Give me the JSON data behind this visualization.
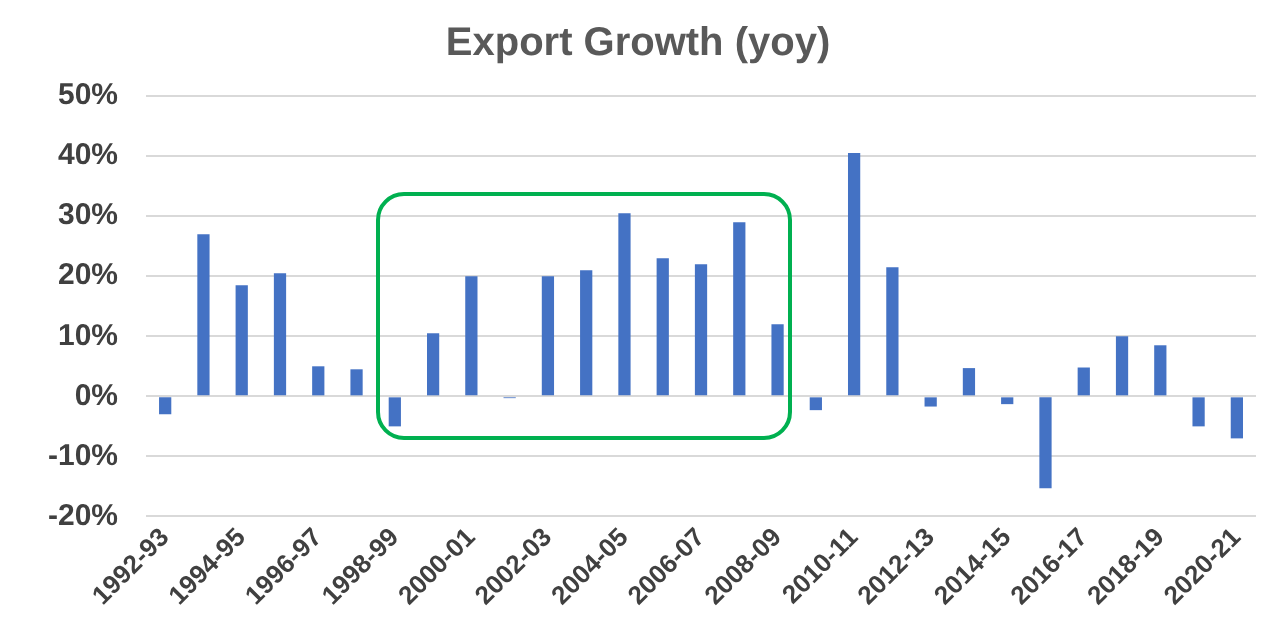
{
  "chart_data": {
    "type": "bar",
    "title": "Export Growth (yoy)",
    "categories": [
      "1992-93",
      null,
      "1994-95",
      null,
      "1996-97",
      null,
      "1998-99",
      null,
      "2000-01",
      null,
      "2002-03",
      null,
      "2004-05",
      null,
      "2006-07",
      null,
      "2008-09",
      null,
      "2010-11",
      null,
      "2012-13",
      null,
      "2014-15",
      null,
      "2016-17",
      null,
      "2018-19",
      null,
      "2020-21"
    ],
    "values": [
      -3,
      27,
      18.5,
      20.5,
      5,
      4.5,
      -5,
      10.5,
      20,
      -0.3,
      20,
      21,
      30.5,
      23,
      22,
      29,
      12,
      -2.3,
      40.5,
      21.5,
      -1.7,
      4.7,
      -1.3,
      -15.3,
      4.8,
      10,
      8.5,
      -5,
      -7
    ],
    "color": "#4472c4",
    "ylim": [
      -20,
      50
    ],
    "yticks": [
      {
        "value": -20,
        "label": "-20%"
      },
      {
        "value": -10,
        "label": "-10%"
      },
      {
        "value": 0,
        "label": "0%"
      },
      {
        "value": 10,
        "label": "10%"
      },
      {
        "value": 20,
        "label": "20%"
      },
      {
        "value": 30,
        "label": "30%"
      },
      {
        "value": 40,
        "label": "40%"
      },
      {
        "value": 50,
        "label": "50%"
      }
    ],
    "grid": "y"
  }
}
